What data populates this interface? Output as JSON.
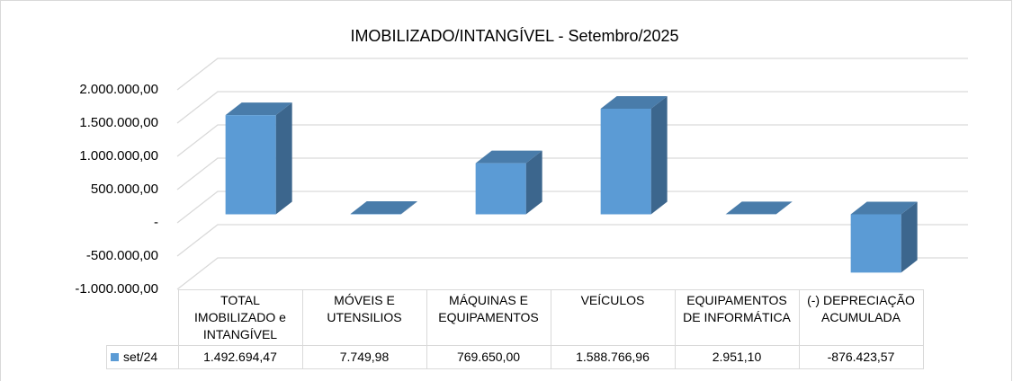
{
  "chart_data": {
    "type": "bar3d",
    "title": "IMOBILIZADO/INTANGÍVEL - Setembro/2025",
    "categories": [
      "TOTAL IMOBILIZADO e INTANGÍVEL",
      "MÓVEIS E UTENSILIOS",
      "MÁQUINAS E EQUIPAMENTOS",
      "VEÍCULOS",
      "EQUIPAMENTOS DE INFORMÁTICA",
      "(-) DEPRECIAÇÃO ACUMULADA"
    ],
    "series": [
      {
        "name": "set/24",
        "color": "#5b9bd5",
        "values": [
          1492694.47,
          7749.98,
          769650.0,
          1588766.96,
          2951.1,
          -876423.57
        ],
        "value_labels": [
          "1.492.694,47",
          "7.749,98",
          "769.650,00",
          "1.588.766,96",
          "2.951,10",
          "-876.423,57"
        ]
      }
    ],
    "ylim": [
      -1000000,
      2000000
    ],
    "yticks": [
      {
        "value": 2000000,
        "label": "2.000.000,00"
      },
      {
        "value": 1500000,
        "label": "1.500.000,00"
      },
      {
        "value": 1000000,
        "label": "1.000.000,00"
      },
      {
        "value": 500000,
        "label": "500.000,00"
      },
      {
        "value": 0,
        "label": "-"
      },
      {
        "value": -500000,
        "label": "-500.000,00"
      },
      {
        "value": -1000000,
        "label": "-1.000.000,00"
      }
    ],
    "grid": true,
    "data_table": true
  }
}
